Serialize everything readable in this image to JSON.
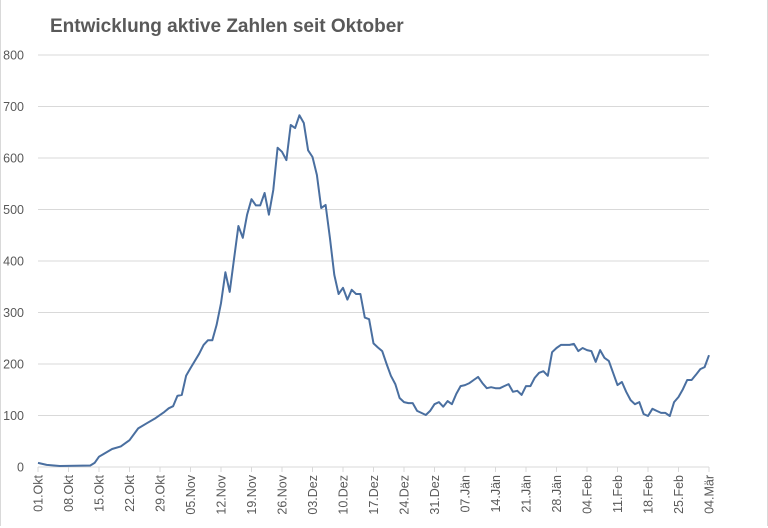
{
  "chart_data": {
    "type": "line",
    "title": "Entwicklung aktive Zahlen seit Oktober",
    "xlabel": "",
    "ylabel": "",
    "ylim": [
      0,
      800
    ],
    "yticks": [
      0,
      100,
      200,
      300,
      400,
      500,
      600,
      700,
      800
    ],
    "grid": true,
    "legend": null,
    "line_color": "#4a6fa0",
    "x_tick_labels": [
      "01.Okt",
      "08.Okt",
      "15.Okt",
      "22.Okt",
      "29.Okt",
      "05.Nov",
      "12.Nov",
      "19.Nov",
      "26.Nov",
      "03.Dez",
      "10.Dez",
      "17.Dez",
      "24.Dez",
      "31.Dez",
      "07.Jän",
      "14.Jän",
      "21.Jän",
      "28.Jän",
      "04.Feb",
      "11.Feb",
      "18.Feb",
      "25.Feb",
      "04.Mär"
    ],
    "series": [
      {
        "name": "aktive Zahlen",
        "day_index": [
          0,
          2,
          5,
          12,
          13,
          14,
          15,
          17,
          19,
          21,
          23,
          25,
          27,
          29,
          30,
          31,
          32,
          33,
          34,
          35,
          37,
          38,
          39,
          40,
          41,
          42,
          43,
          44,
          45,
          46,
          47,
          48,
          49,
          50,
          51,
          52,
          53,
          54,
          55,
          56,
          57,
          58,
          59,
          60,
          61,
          62,
          63,
          64,
          65,
          66,
          67,
          68,
          69,
          70,
          71,
          72,
          73,
          74,
          75,
          76,
          77,
          78,
          79,
          80,
          81,
          82,
          83,
          84,
          85,
          86,
          87,
          88,
          89,
          90,
          91,
          92,
          93,
          94,
          95,
          96,
          97,
          98,
          99,
          100,
          101,
          102,
          103,
          104,
          105,
          106,
          107,
          108,
          109,
          110,
          111,
          112,
          113,
          114,
          115,
          116,
          117,
          118,
          119,
          120,
          121,
          122,
          123,
          124,
          125,
          126,
          127,
          128,
          129,
          130,
          131,
          132,
          133,
          134,
          135,
          136,
          137,
          138,
          139,
          140,
          141,
          142,
          143,
          144,
          145,
          146,
          147,
          148,
          149,
          150,
          151,
          152,
          153,
          154
        ],
        "values": [
          8,
          4,
          2,
          3,
          8,
          20,
          25,
          35,
          40,
          52,
          75,
          85,
          95,
          107,
          114,
          118,
          138,
          140,
          177,
          192,
          220,
          237,
          246,
          246,
          276,
          318,
          378,
          340,
          405,
          468,
          445,
          490,
          520,
          508,
          508,
          532,
          490,
          538,
          620,
          612,
          596,
          664,
          658,
          683,
          668,
          615,
          602,
          567,
          503,
          509,
          445,
          373,
          336,
          348,
          325,
          344,
          336,
          336,
          290,
          287,
          240,
          232,
          225,
          200,
          177,
          161,
          134,
          126,
          124,
          124,
          109,
          105,
          101,
          109,
          122,
          126,
          117,
          128,
          122,
          142,
          157,
          159,
          163,
          169,
          175,
          163,
          153,
          155,
          153,
          153,
          157,
          161,
          146,
          148,
          140,
          157,
          157,
          173,
          183,
          186,
          177,
          223,
          231,
          237,
          237,
          237,
          239,
          225,
          231,
          227,
          225,
          204,
          227,
          212,
          206,
          183,
          159,
          165,
          146,
          130,
          122,
          126,
          103,
          99,
          113,
          109,
          105,
          105,
          99,
          126,
          136,
          151,
          169,
          169,
          179,
          190,
          194,
          217
        ]
      }
    ]
  }
}
